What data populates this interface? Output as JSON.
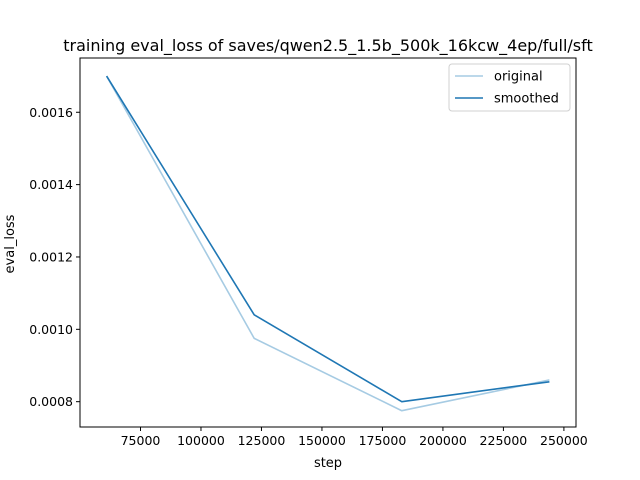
{
  "chart_data": {
    "type": "line",
    "title": "training eval_loss of saves/qwen2.5_1.5b_500k_16kcw_4ep/full/sft",
    "xlabel": "step",
    "ylabel": "eval_loss",
    "xlim": [
      50000,
      255000
    ],
    "ylim": [
      0.00073,
      0.00175
    ],
    "xticks": [
      75000,
      100000,
      125000,
      150000,
      175000,
      200000,
      225000,
      250000
    ],
    "yticks": [
      0.0008,
      0.001,
      0.0012,
      0.0014,
      0.0016
    ],
    "ytick_labels": [
      "0.0008",
      "0.0010",
      "0.0012",
      "0.0014",
      "0.0016"
    ],
    "grid": false,
    "legend": "top-right",
    "series": [
      {
        "name": "original",
        "color": "#a6cbe3",
        "x": [
          61000,
          122000,
          183000,
          244000
        ],
        "y": [
          0.0017,
          0.000975,
          0.000775,
          0.00086
        ]
      },
      {
        "name": "smoothed",
        "color": "#1f77b4",
        "x": [
          61000,
          122000,
          183000,
          244000
        ],
        "y": [
          0.0017,
          0.00104,
          0.0008,
          0.000855
        ]
      }
    ]
  }
}
